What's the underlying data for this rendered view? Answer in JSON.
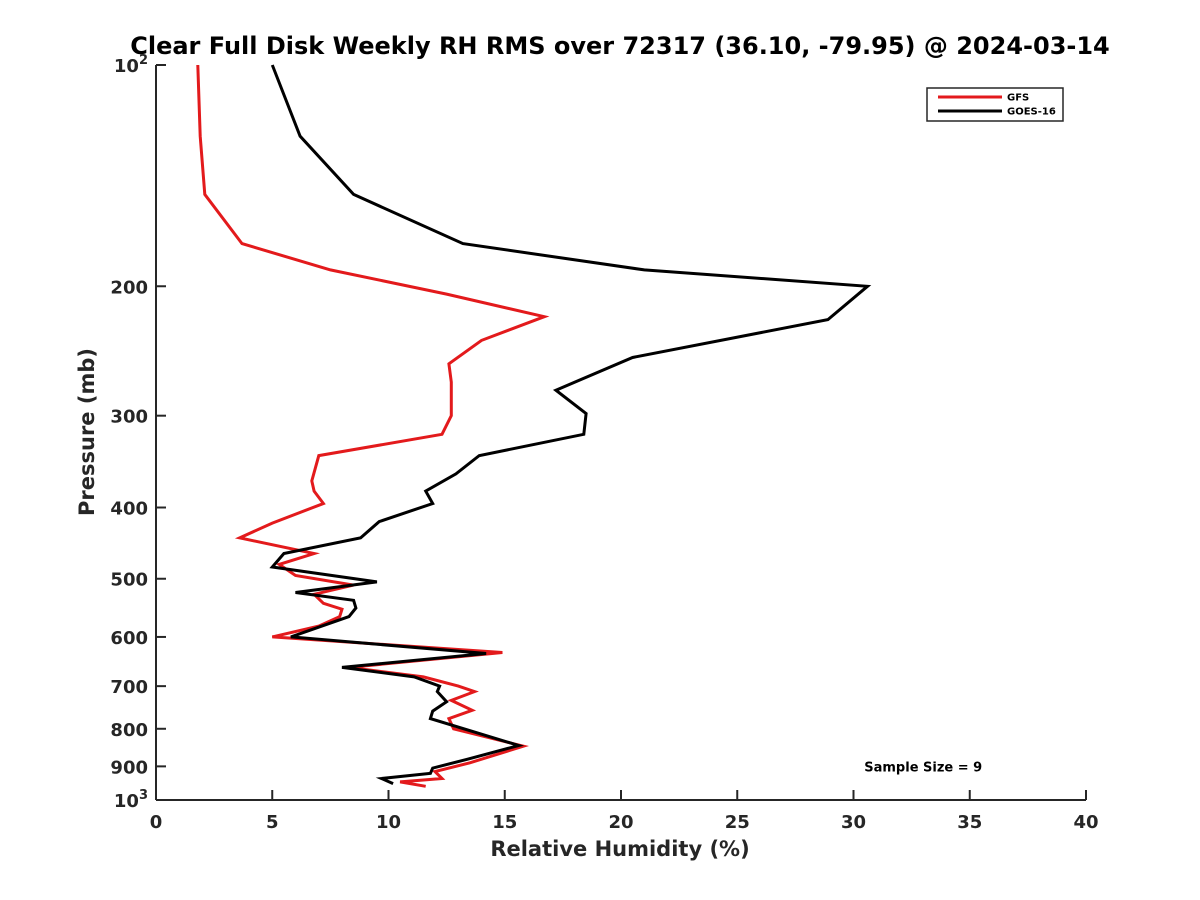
{
  "chart_data": {
    "type": "line",
    "title": "Clear Full Disk Weekly RH RMS over 72317 (36.10, -79.95) @ 2024-03-14",
    "xlabel": "Relative Humidity (%)",
    "ylabel": "Pressure (mb)",
    "xlim": [
      0,
      40
    ],
    "ylim": [
      100,
      1000
    ],
    "y_scale": "log",
    "y_reversed": true,
    "x_ticks": [
      "0",
      "5",
      "10",
      "15",
      "20",
      "25",
      "30",
      "35",
      "40"
    ],
    "y_ticks": [
      {
        "value": 100,
        "base": "10",
        "exp": "2"
      },
      {
        "value": 200,
        "label": "200"
      },
      {
        "value": 300,
        "label": "300"
      },
      {
        "value": 400,
        "label": "400"
      },
      {
        "value": 500,
        "label": "500"
      },
      {
        "value": 600,
        "label": "600"
      },
      {
        "value": 700,
        "label": "700"
      },
      {
        "value": 800,
        "label": "800"
      },
      {
        "value": 900,
        "label": "900"
      },
      {
        "value": 1000,
        "base": "10",
        "exp": "3"
      }
    ],
    "legend_position": "top-right",
    "grid": false,
    "series": [
      {
        "name": "GFS",
        "color": "#e31a1c",
        "points": [
          [
            1.8,
            100
          ],
          [
            1.9,
            125
          ],
          [
            2.1,
            150
          ],
          [
            3.7,
            175
          ],
          [
            7.5,
            190
          ],
          [
            12.5,
            205
          ],
          [
            16.7,
            220
          ],
          [
            14.0,
            237
          ],
          [
            12.6,
            255
          ],
          [
            12.7,
            270
          ],
          [
            12.7,
            300
          ],
          [
            12.3,
            318
          ],
          [
            7.0,
            340
          ],
          [
            6.7,
            368
          ],
          [
            6.8,
            380
          ],
          [
            7.2,
            395
          ],
          [
            5.0,
            420
          ],
          [
            3.6,
            440
          ],
          [
            6.8,
            462
          ],
          [
            5.3,
            478
          ],
          [
            6.0,
            495
          ],
          [
            8.5,
            510
          ],
          [
            6.8,
            525
          ],
          [
            7.2,
            540
          ],
          [
            8.0,
            550
          ],
          [
            7.9,
            563
          ],
          [
            7.0,
            580
          ],
          [
            5.0,
            600
          ],
          [
            14.9,
            630
          ],
          [
            8.3,
            660
          ],
          [
            11.5,
            680
          ],
          [
            13.0,
            700
          ],
          [
            13.7,
            712
          ],
          [
            12.7,
            732
          ],
          [
            13.6,
            755
          ],
          [
            12.6,
            775
          ],
          [
            12.8,
            800
          ],
          [
            15.8,
            845
          ],
          [
            13.5,
            890
          ],
          [
            12.0,
            915
          ],
          [
            12.3,
            935
          ],
          [
            10.5,
            945
          ],
          [
            11.6,
            958
          ]
        ]
      },
      {
        "name": "GOES-16",
        "color": "#000000",
        "points": [
          [
            5.0,
            100
          ],
          [
            6.2,
            125
          ],
          [
            8.5,
            150
          ],
          [
            13.2,
            175
          ],
          [
            21.0,
            190
          ],
          [
            30.6,
            200
          ],
          [
            28.9,
            222
          ],
          [
            20.5,
            250
          ],
          [
            17.2,
            277
          ],
          [
            18.5,
            298
          ],
          [
            18.4,
            318
          ],
          [
            13.9,
            340
          ],
          [
            12.9,
            360
          ],
          [
            11.6,
            380
          ],
          [
            11.9,
            395
          ],
          [
            9.6,
            418
          ],
          [
            8.8,
            440
          ],
          [
            5.5,
            462
          ],
          [
            5.0,
            482
          ],
          [
            9.5,
            505
          ],
          [
            6.0,
            522
          ],
          [
            8.5,
            535
          ],
          [
            8.6,
            548
          ],
          [
            8.3,
            563
          ],
          [
            5.8,
            600
          ],
          [
            14.2,
            632
          ],
          [
            8.0,
            660
          ],
          [
            11.1,
            680
          ],
          [
            12.2,
            700
          ],
          [
            12.1,
            712
          ],
          [
            12.5,
            735
          ],
          [
            11.9,
            757
          ],
          [
            11.8,
            775
          ],
          [
            15.6,
            843
          ],
          [
            13.4,
            880
          ],
          [
            11.9,
            905
          ],
          [
            11.8,
            920
          ],
          [
            9.7,
            935
          ],
          [
            10.2,
            950
          ]
        ]
      }
    ],
    "annotations": [
      {
        "text": "Sample Size = 9",
        "x": 33,
        "y": 900
      }
    ]
  }
}
